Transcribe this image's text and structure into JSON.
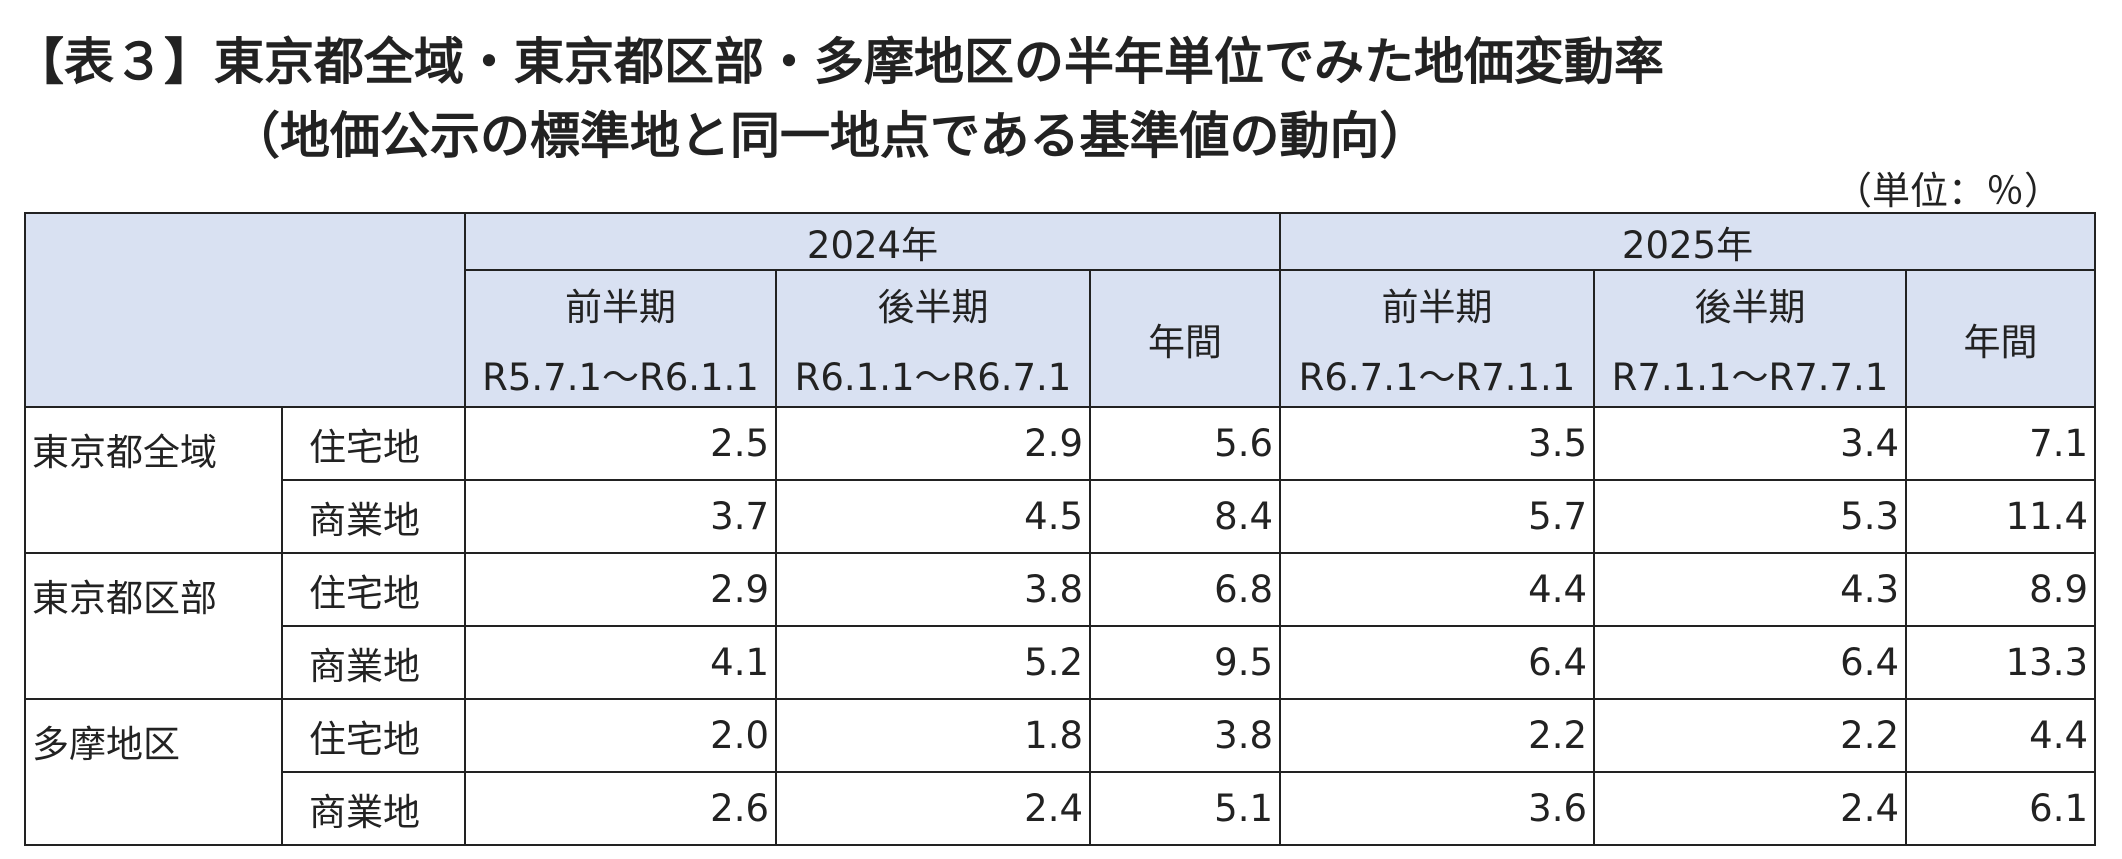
{
  "title": {
    "line1": "【表３】東京都全域・東京都区部・多摩地区の半年単位でみた地価変動率",
    "line2": "（地価公示の標準地と同一地点である基準値の動向）"
  },
  "unit": "（単位：％）",
  "table": {
    "years": [
      "2024年",
      "2025年"
    ],
    "subheaders": [
      {
        "name": "前半期",
        "period": "R5.7.1～R6.1.1"
      },
      {
        "name": "後半期",
        "period": "R6.1.1～R6.7.1"
      },
      {
        "name": "年間"
      },
      {
        "name": "前半期",
        "period": "R6.7.1～R7.1.1"
      },
      {
        "name": "後半期",
        "period": "R7.1.1～R7.7.1"
      },
      {
        "name": "年間"
      }
    ],
    "groups": [
      {
        "region": "東京都全域",
        "rows": [
          {
            "type": "住宅地",
            "values": [
              "2.5",
              "2.9",
              "5.6",
              "3.5",
              "3.4",
              "7.1"
            ]
          },
          {
            "type": "商業地",
            "values": [
              "3.7",
              "4.5",
              "8.4",
              "5.7",
              "5.3",
              "11.4"
            ]
          }
        ]
      },
      {
        "region": "東京都区部",
        "rows": [
          {
            "type": "住宅地",
            "values": [
              "2.9",
              "3.8",
              "6.8",
              "4.4",
              "4.3",
              "8.9"
            ]
          },
          {
            "type": "商業地",
            "values": [
              "4.1",
              "5.2",
              "9.5",
              "6.4",
              "6.4",
              "13.3"
            ]
          }
        ]
      },
      {
        "region": "多摩地区",
        "rows": [
          {
            "type": "住宅地",
            "values": [
              "2.0",
              "1.8",
              "3.8",
              "2.2",
              "2.2",
              "4.4"
            ]
          },
          {
            "type": "商業地",
            "values": [
              "2.6",
              "2.4",
              "5.1",
              "3.6",
              "2.4",
              "6.1"
            ]
          }
        ]
      }
    ]
  }
}
